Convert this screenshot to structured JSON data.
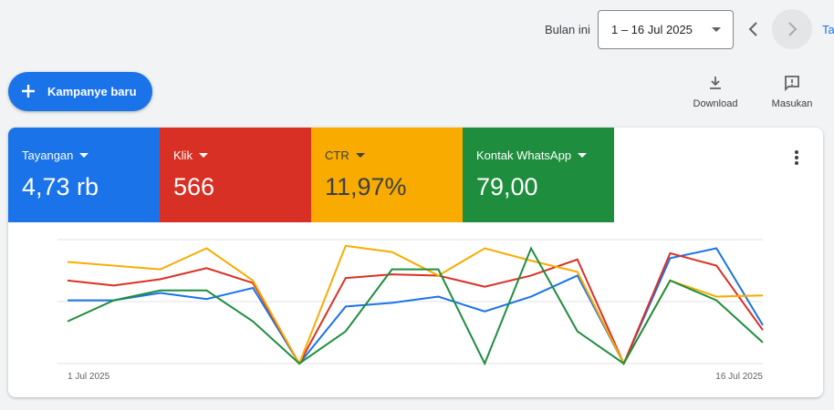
{
  "toolbar": {
    "period_label": "Bulan ini",
    "date_range": "1 – 16 Jul 2025",
    "cut_text": "Ta"
  },
  "new_campaign_button": "Kampanye baru",
  "actions": [
    "Download",
    "Masukan"
  ],
  "scorecards": [
    {
      "label": "Tayangan",
      "value": "4,73 rb",
      "color": "#1a73e8",
      "text_color": "#ffffff"
    },
    {
      "label": "Klik",
      "value": "566",
      "color": "#d93025",
      "text_color": "#ffffff"
    },
    {
      "label": "CTR",
      "value": "11,97%",
      "color": "#f9ab00",
      "text_color": "#3c4043"
    },
    {
      "label": "Kontak WhatsApp",
      "value": "79,00",
      "color": "#1e8e3e",
      "text_color": "#ffffff"
    }
  ],
  "chart_data": {
    "type": "line",
    "categories": [
      "1 Jul 2025",
      null,
      null,
      null,
      null,
      null,
      null,
      null,
      null,
      null,
      null,
      null,
      null,
      null,
      null,
      "16 Jul 2025"
    ],
    "ylim": [
      0,
      100
    ],
    "grid": true,
    "series": [
      {
        "color": "#1a73e8",
        "values": [
          51,
          51,
          57,
          52,
          61,
          0,
          46,
          49,
          54,
          42,
          54,
          71,
          0,
          85,
          93,
          31
        ]
      },
      {
        "color": "#d93025",
        "values": [
          67,
          63,
          68,
          77,
          65,
          0,
          69,
          72,
          71,
          62,
          71,
          84,
          0,
          89,
          79,
          27
        ]
      },
      {
        "color": "#f9ab00",
        "values": [
          82,
          79,
          76,
          93,
          67,
          0,
          95,
          90,
          71,
          93,
          83,
          74,
          0,
          67,
          54,
          55
        ]
      },
      {
        "color": "#1e8e3e",
        "values": [
          34,
          51,
          59,
          59,
          34,
          0,
          26,
          76,
          76,
          0,
          93,
          26,
          0,
          67,
          51,
          17
        ]
      }
    ]
  }
}
